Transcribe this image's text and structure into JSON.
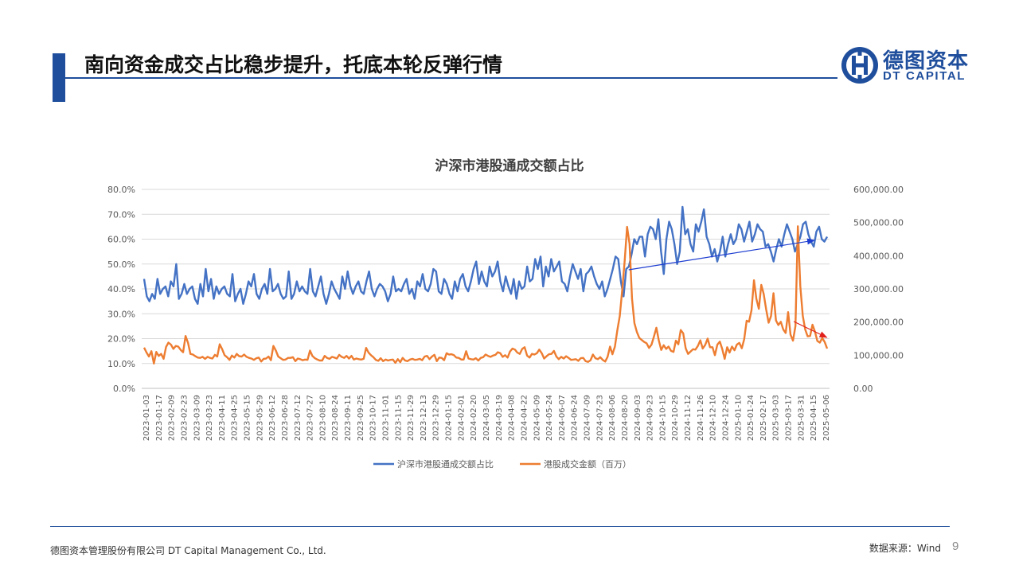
{
  "slide": {
    "title": "南向资金成交占比稳步提升，托底本轮反弹行情",
    "logo_cn": "德图资本",
    "logo_en": "DT CAPITAL",
    "footer_company": "德图资本管理股份有限公司 DT Capital Management Co., Ltd.",
    "footer_source": "数据来源：Wind",
    "page_number": "9",
    "brand_color": "#1f4e9c"
  },
  "chart_data": {
    "type": "line",
    "title": "沪深市港股通成交额占比",
    "x_labels": [
      "2023-01-03",
      "2023-01-17",
      "2023-02-09",
      "2023-02-23",
      "2023-03-09",
      "2023-03-23",
      "2023-04-11",
      "2023-04-25",
      "2023-05-15",
      "2023-05-29",
      "2023-06-12",
      "2023-06-28",
      "2023-07-12",
      "2023-07-27",
      "2023-08-10",
      "2023-08-24",
      "2023-09-11",
      "2023-09-25",
      "2023-10-17",
      "2023-11-01",
      "2023-11-15",
      "2023-11-29",
      "2023-12-13",
      "2023-12-29",
      "2024-01-15",
      "2024-02-01",
      "2024-02-20",
      "2024-03-05",
      "2024-03-19",
      "2024-04-08",
      "2024-04-22",
      "2024-05-09",
      "2024-05-24",
      "2024-06-07",
      "2024-06-24",
      "2024-07-09",
      "2024-07-23",
      "2024-08-06",
      "2024-08-20",
      "2024-09-03",
      "2024-09-23",
      "2024-10-15",
      "2024-10-29",
      "2024-11-12",
      "2024-11-26",
      "2024-12-10",
      "2024-12-24",
      "2025-01-10",
      "2025-01-24",
      "2025-02-17",
      "2025-03-03",
      "2025-03-17",
      "2025-03-31",
      "2025-04-15",
      "2025-05-06"
    ],
    "y_left": {
      "ticks": [
        "0.0%",
        "10.0%",
        "20.0%",
        "30.0%",
        "40.0%",
        "50.0%",
        "60.0%",
        "70.0%",
        "80.0%"
      ],
      "min": 0,
      "max": 0.8
    },
    "y_right": {
      "ticks": [
        "0.00",
        "100,000.00",
        "200,000.00",
        "300,000.00",
        "400,000.00",
        "500,000.00",
        "600,000.00"
      ],
      "min": 0,
      "max": 600000
    },
    "series": [
      {
        "name": "沪深市港股通成交额占比",
        "axis": "left",
        "color": "#4472c4",
        "values": [
          0.44,
          0.37,
          0.35,
          0.38,
          0.36,
          0.44,
          0.38,
          0.4,
          0.41,
          0.37,
          0.43,
          0.41,
          0.5,
          0.36,
          0.38,
          0.42,
          0.38,
          0.4,
          0.41,
          0.36,
          0.34,
          0.42,
          0.37,
          0.48,
          0.39,
          0.44,
          0.36,
          0.41,
          0.38,
          0.4,
          0.41,
          0.38,
          0.37,
          0.46,
          0.35,
          0.38,
          0.4,
          0.34,
          0.38,
          0.43,
          0.41,
          0.46,
          0.38,
          0.36,
          0.4,
          0.42,
          0.38,
          0.48,
          0.39,
          0.4,
          0.42,
          0.38,
          0.36,
          0.37,
          0.47,
          0.36,
          0.38,
          0.43,
          0.39,
          0.41,
          0.39,
          0.38,
          0.48,
          0.39,
          0.37,
          0.41,
          0.45,
          0.38,
          0.34,
          0.38,
          0.43,
          0.4,
          0.38,
          0.36,
          0.45,
          0.4,
          0.47,
          0.41,
          0.38,
          0.41,
          0.43,
          0.39,
          0.38,
          0.43,
          0.47,
          0.4,
          0.37,
          0.4,
          0.42,
          0.41,
          0.39,
          0.35,
          0.38,
          0.45,
          0.39,
          0.4,
          0.39,
          0.42,
          0.44,
          0.38,
          0.4,
          0.36,
          0.43,
          0.41,
          0.46,
          0.4,
          0.39,
          0.42,
          0.48,
          0.47,
          0.39,
          0.38,
          0.44,
          0.42,
          0.38,
          0.36,
          0.43,
          0.39,
          0.44,
          0.46,
          0.41,
          0.39,
          0.43,
          0.48,
          0.51,
          0.42,
          0.47,
          0.43,
          0.41,
          0.49,
          0.45,
          0.47,
          0.51,
          0.43,
          0.39,
          0.45,
          0.41,
          0.38,
          0.44,
          0.36,
          0.43,
          0.4,
          0.41,
          0.49,
          0.43,
          0.44,
          0.52,
          0.48,
          0.53,
          0.41,
          0.49,
          0.45,
          0.52,
          0.47,
          0.49,
          0.51,
          0.43,
          0.42,
          0.39,
          0.45,
          0.5,
          0.47,
          0.44,
          0.48,
          0.39,
          0.46,
          0.47,
          0.49,
          0.45,
          0.42,
          0.4,
          0.43,
          0.37,
          0.4,
          0.44,
          0.48,
          0.53,
          0.52,
          0.43,
          0.37,
          0.48,
          0.49,
          0.54,
          0.6,
          0.58,
          0.61,
          0.61,
          0.53,
          0.62,
          0.65,
          0.64,
          0.6,
          0.68,
          0.55,
          0.46,
          0.6,
          0.67,
          0.64,
          0.58,
          0.5,
          0.55,
          0.73,
          0.62,
          0.64,
          0.58,
          0.55,
          0.66,
          0.63,
          0.67,
          0.72,
          0.61,
          0.58,
          0.53,
          0.56,
          0.51,
          0.55,
          0.61,
          0.53,
          0.58,
          0.62,
          0.58,
          0.6,
          0.66,
          0.64,
          0.59,
          0.63,
          0.67,
          0.59,
          0.62,
          0.66,
          0.64,
          0.63,
          0.57,
          0.58,
          0.55,
          0.51,
          0.56,
          0.6,
          0.57,
          0.62,
          0.66,
          0.63,
          0.6,
          0.55,
          0.58,
          0.61,
          0.66,
          0.67,
          0.62,
          0.59,
          0.57,
          0.63,
          0.65,
          0.6,
          0.59,
          0.61
        ]
      },
      {
        "name": "港股成交金额（百万）",
        "axis": "right",
        "color": "#ed7d31",
        "values": [
          123000,
          108000,
          96000,
          112000,
          75000,
          110000,
          98000,
          104000,
          89000,
          125000,
          138000,
          132000,
          119000,
          128000,
          126000,
          116000,
          109000,
          158000,
          137000,
          104000,
          102000,
          97000,
          93000,
          92000,
          95000,
          89000,
          95000,
          92000,
          90000,
          101000,
          96000,
          133000,
          118000,
          100000,
          94000,
          86000,
          99000,
          93000,
          104000,
          97000,
          96000,
          102000,
          95000,
          92000,
          90000,
          86000,
          91000,
          93000,
          81000,
          89000,
          90000,
          96000,
          85000,
          128000,
          114000,
          96000,
          91000,
          86000,
          87000,
          92000,
          92000,
          94000,
          82000,
          90000,
          88000,
          85000,
          87000,
          86000,
          114000,
          98000,
          91000,
          87000,
          84000,
          84000,
          98000,
          92000,
          89000,
          95000,
          93000,
          90000,
          101000,
          95000,
          92000,
          98000,
          90000,
          98000,
          87000,
          90000,
          88000,
          87000,
          89000,
          122000,
          108000,
          100000,
          94000,
          86000,
          83000,
          91000,
          82000,
          87000,
          84000,
          86000,
          87000,
          77000,
          88000,
          79000,
          92000,
          84000,
          82000,
          87000,
          89000,
          86000,
          87000,
          89000,
          85000,
          96000,
          98000,
          88000,
          96000,
          101000,
          82000,
          93000,
          92000,
          85000,
          106000,
          102000,
          103000,
          100000,
          93000,
          92000,
          87000,
          87000,
          112000,
          90000,
          88000,
          87000,
          91000,
          84000,
          92000,
          94000,
          102000,
          98000,
          95000,
          99000,
          101000,
          109000,
          106000,
          95000,
          100000,
          93000,
          111000,
          120000,
          117000,
          108000,
          104000,
          119000,
          124000,
          99000,
          93000,
          104000,
          102000,
          106000,
          117000,
          106000,
          90000,
          97000,
          103000,
          104000,
          113000,
          96000,
          88000,
          95000,
          90000,
          97000,
          92000,
          86000,
          87000,
          88000,
          83000,
          91000,
          92000,
          82000,
          80000,
          85000,
          102000,
          91000,
          88000,
          94000,
          86000,
          81000,
          95000,
          126000,
          103000,
          126000,
          176000,
          218000,
          297000,
          385000,
          487000,
          436000,
          271000,
          197000,
          170000,
          152000,
          146000,
          140000,
          136000,
          122000,
          132000,
          156000,
          183000,
          144000,
          116000,
          130000,
          119000,
          126000,
          113000,
          110000,
          144000,
          133000,
          176000,
          166000,
          121000,
          104000,
          111000,
          118000,
          117000,
          128000,
          145000,
          120000,
          131000,
          150000,
          124000,
          124000,
          100000,
          132000,
          141000,
          119000,
          89000,
          124000,
          108000,
          126000,
          115000,
          132000,
          137000,
          121000,
          148000,
          204000,
          201000,
          236000,
          326000,
          270000,
          240000,
          312000,
          285000,
          238000,
          198000,
          218000,
          287000,
          205000,
          191000,
          201000,
          178000,
          167000,
          230000,
          162000,
          144000,
          188000,
          489000,
          308000,
          219000,
          178000,
          157000,
          158000,
          192000,
          171000,
          143000,
          138000,
          152000,
          140000,
          120000
        ]
      }
    ],
    "legend": [
      "沪深市港股通成交额占比",
      "港股成交金额（百万）"
    ],
    "legend_position": "bottom",
    "grid": true,
    "annotations": [
      {
        "type": "arrow",
        "color": "#1f3fd1",
        "from": [
          0.708,
          0.596
        ],
        "to": [
          0.978,
          0.744
        ]
      },
      {
        "type": "arrow",
        "color": "#e0201c",
        "from": [
          0.948,
          0.336
        ],
        "to": [
          0.996,
          0.256
        ]
      }
    ]
  }
}
